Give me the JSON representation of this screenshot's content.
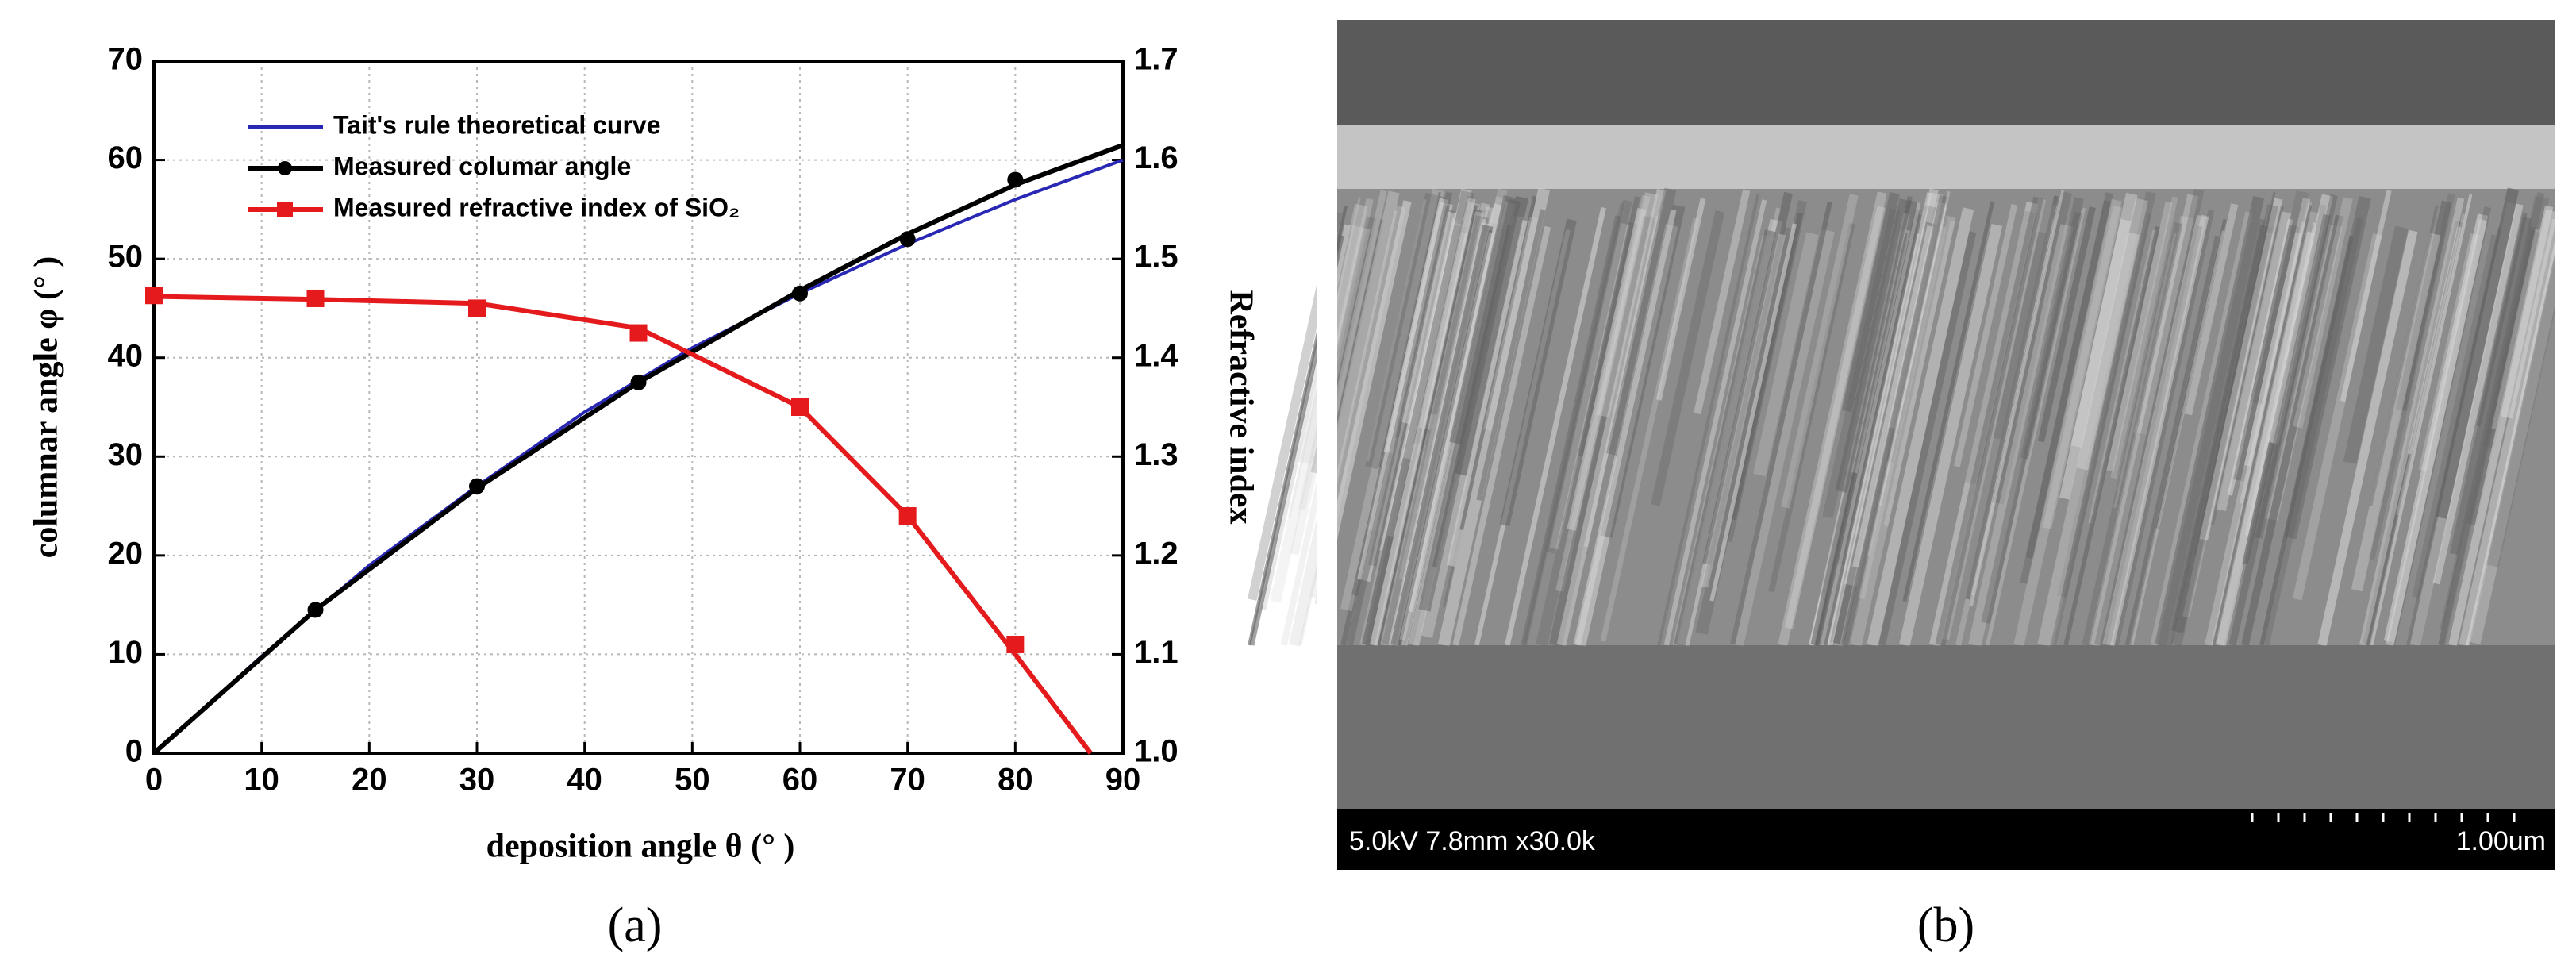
{
  "chart_data": {
    "type": "line",
    "xlabel": "deposition angle θ (° )",
    "ylabel": "columnar angle φ (° )",
    "y2label": "Refractive index",
    "xlim": [
      0,
      90
    ],
    "xticks": [
      0,
      10,
      20,
      30,
      40,
      50,
      60,
      70,
      80,
      90
    ],
    "ylim": [
      0,
      70
    ],
    "yticks": [
      0,
      10,
      20,
      30,
      40,
      50,
      60,
      70
    ],
    "y2lim": [
      1.0,
      1.7
    ],
    "y2ticks": [
      {
        "value": 1.0,
        "label": "1.0"
      },
      1.1,
      1.2,
      1.3,
      1.4,
      1.5,
      1.6,
      1.7
    ],
    "grid": true,
    "legend": "upper left",
    "series": [
      {
        "name": "Tait's rule theoretical curve",
        "color": "#2828b4",
        "axis": "y",
        "line": {
          "x": [
            0,
            10,
            20,
            30,
            40,
            50,
            60,
            70,
            80,
            90
          ],
          "values": [
            0,
            9.8,
            19,
            27,
            34.5,
            41,
            46.5,
            51.5,
            56,
            60
          ]
        }
      },
      {
        "name": "Measured columar angle",
        "color": "#000000",
        "axis": "y",
        "marker": "circle",
        "line": {
          "x": [
            0,
            15,
            30,
            45,
            60,
            70,
            80,
            90
          ],
          "values": [
            0,
            14.5,
            26.8,
            37.5,
            46.8,
            52.5,
            57.5,
            61.5
          ]
        },
        "points": {
          "x": [
            15,
            30,
            45,
            60,
            70,
            80
          ],
          "values": [
            14.5,
            27,
            37.5,
            46.5,
            52,
            58
          ]
        }
      },
      {
        "name": "Measured refractive index of SiO₂",
        "color": "#e41a1c",
        "axis": "y2",
        "marker": "square",
        "line": {
          "x": [
            0,
            15,
            30,
            45,
            60,
            70,
            80,
            87
          ],
          "values": [
            1.462,
            1.459,
            1.455,
            1.43,
            1.35,
            1.24,
            1.1,
            1.0
          ]
        },
        "points": {
          "x": [
            0,
            15,
            30,
            45,
            60,
            70,
            80
          ],
          "values": [
            1.463,
            1.46,
            1.45,
            1.425,
            1.35,
            1.24,
            1.11
          ]
        }
      }
    ]
  },
  "panels": {
    "a": "(a)",
    "b": "(b)"
  },
  "sem_image": {
    "info": "5.0kV 7.8mm x30.0k",
    "scale": "1.00um"
  }
}
